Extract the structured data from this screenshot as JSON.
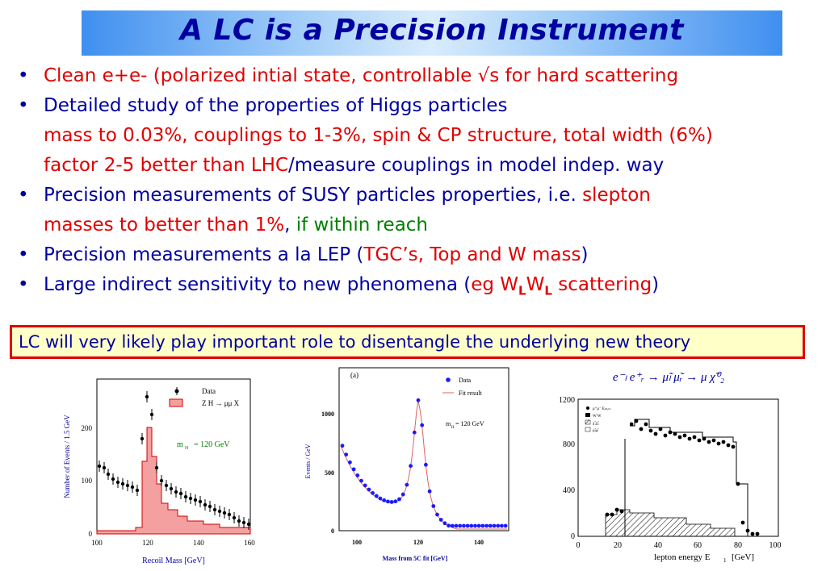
{
  "title": "A LC is a Precision Instrument",
  "bullets": {
    "b1": "Clean e+e- (polarized intial state, controllable √s for hard scattering",
    "b2": "Detailed study of the properties of Higgs particles",
    "b2_sub1": "mass to 0.03%, couplings to 1-3%, spin & CP structure, total width (6%)",
    "b2_sub2_red": "factor 2-5 better than LHC",
    "b2_sub2_blue": "/measure couplings in model indep. way",
    "b3_a": "Precision measurements of SUSY particles properties, i.e. ",
    "b3_b": "slepton",
    "b3_c": "masses to better than 1%",
    "b3_d": ", ",
    "b3_e": "if within reach",
    "b4_a": "Precision measurements a la LEP (",
    "b4_b": "TGC’s, Top and W mass",
    "b4_c": ")",
    "b5_a": "Large indirect sensitivity to new phenomena (",
    "b5_b": "eg W",
    "b5_sub1": "L",
    "b5_w2": "W",
    "b5_sub2": "L",
    "b5_c": " scattering",
    "b5_d": ")"
  },
  "callout": "LC will very likely play important role to disentangle the underlying new theory",
  "colors": {
    "title_text": "#0000a0",
    "body_blue": "#0000a0",
    "emph_red": "#e00000",
    "emph_green": "#008000",
    "box_border": "#e00000",
    "box_fill": "#ffffc8"
  },
  "plot1": {
    "legend_data": "Data",
    "legend_zh": "Z H → μμ X",
    "mh_label": "m",
    "mh_sub": "H",
    "mh_value": "=  120  GeV",
    "ylabel": "Number of Events / 1.5 GeV",
    "xlabel": "Recoil Mass  [GeV]",
    "xticks": [
      "100",
      "120",
      "140",
      "160"
    ],
    "yticks": [
      "0",
      "100",
      "200"
    ]
  },
  "plot2": {
    "panel": "(a)",
    "legend_data": "Data",
    "legend_fit": "Fit result",
    "mh_label": "m",
    "mh_sub": "H",
    "mh_value": " = 120 GeV",
    "ylabel": "Events / GeV",
    "xlabel": "Mass from 5C fit [GeV]",
    "xticks": [
      "100",
      "120",
      "140"
    ],
    "yticks": [
      "0",
      "500",
      "1000"
    ]
  },
  "plot3": {
    "process": "e⁻ₗ e⁺ᵣ → μ̃ₗ μ̃ᵣ → μ χ̃⁰₂",
    "legend": [
      "μ⁺μ⁻ Eₘᵢₛₛ",
      "W W",
      "χ̃₁χ̃₂",
      "μ̃ₗμ̃ₗ"
    ],
    "xlabel": "lepton energy  E",
    "xlabel_sub": "1",
    "xlabel_unit": "[GeV]",
    "xticks": [
      "0",
      "20",
      "40",
      "60",
      "80",
      "100"
    ],
    "yticks": [
      "0",
      "400",
      "800",
      "1200"
    ]
  }
}
